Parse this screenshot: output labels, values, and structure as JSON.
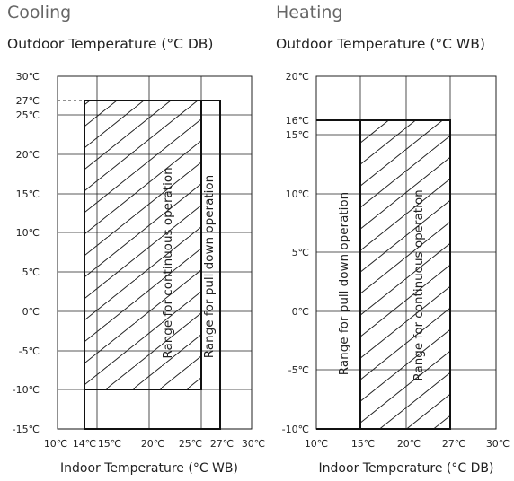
{
  "cooling": {
    "title": "Cooling",
    "subtitle": "Outdoor Temperature (°C DB)",
    "x_axis_label": "Indoor Temperature (°C WB)",
    "y_ticks": [
      "30℃",
      "27℃",
      "25℃",
      "20℃",
      "15℃",
      "10℃",
      "5℃",
      "0℃",
      "-5℃",
      "-10℃",
      "-15℃"
    ],
    "x_ticks": [
      "10℃",
      "14℃",
      "15℃",
      "20℃",
      "25℃",
      "27℃",
      "30℃"
    ],
    "label_continuous": "Range for continuous operation",
    "label_pulldown": "Range for pull down operation",
    "continuous_range": {
      "x": [
        14,
        25
      ],
      "y": [
        -10,
        27
      ]
    },
    "pulldown_range": {
      "x": [
        14,
        27
      ],
      "y": [
        -15,
        27
      ]
    }
  },
  "heating": {
    "title": "Heating",
    "subtitle": "Outdoor Temperature (°C WB)",
    "x_axis_label": "Indoor Temperature (°C DB)",
    "y_ticks": [
      "20℃",
      "16℃",
      "15℃",
      "10℃",
      "5℃",
      "0℃",
      "-5℃",
      "-10℃"
    ],
    "x_ticks": [
      "10℃",
      "15℃",
      "20℃",
      "27℃",
      "30℃"
    ],
    "label_pulldown": "Range for pull down operation",
    "label_continuous": "Range for continuous operation",
    "continuous_range": {
      "x": [
        15,
        27
      ],
      "y": [
        -10,
        16
      ]
    },
    "pulldown_range": {
      "x": [
        10,
        27
      ],
      "y": [
        -10,
        16
      ]
    }
  }
}
